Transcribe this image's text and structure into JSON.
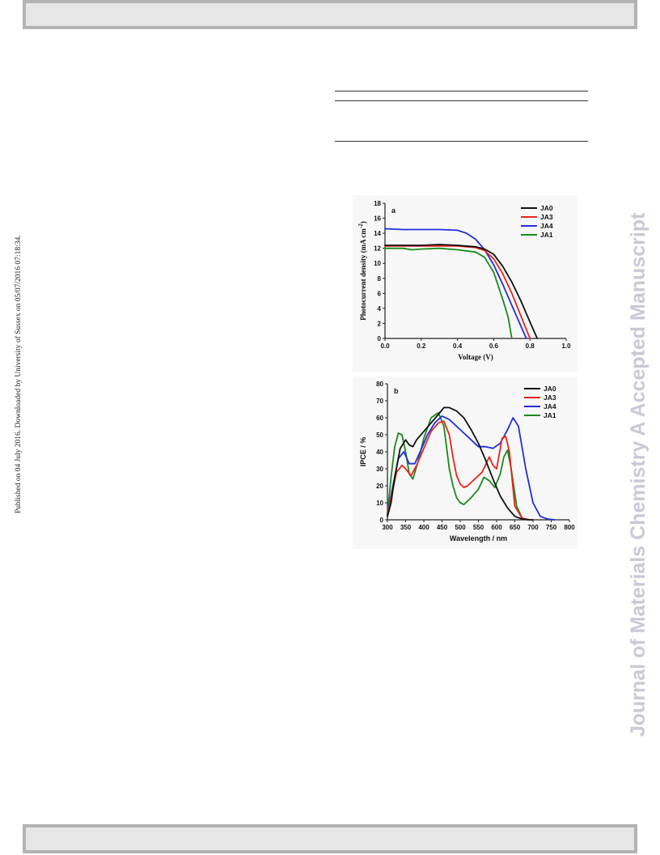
{
  "side_note": "Published on 04 July 2016. Downloaded by University of Sussex on 05/07/2016 07:18:34.",
  "watermark": "Journal of Materials Chemistry A Accepted Manuscript",
  "chart_data": [
    {
      "type": "line",
      "panel_label": "a",
      "xlabel": "Voltage (V)",
      "ylabel": "Photocurrent density (mA cm",
      "ylabel_sup": "-2",
      "ylabel_end": ")",
      "xlim": [
        0.0,
        1.0
      ],
      "ylim": [
        0,
        18
      ],
      "xticks": [
        "0.0",
        "0.2",
        "0.4",
        "0.6",
        "0.8",
        "1.0"
      ],
      "yticks": [
        "0",
        "2",
        "4",
        "6",
        "8",
        "10",
        "12",
        "14",
        "16",
        "18"
      ],
      "legend_position": "top-right",
      "colors": {
        "JA0": "#111111",
        "JA3": "#e8231d",
        "JA4": "#1f2fe0",
        "JA1": "#1a8a1a"
      },
      "series": [
        {
          "name": "JA0",
          "x": [
            0,
            0.1,
            0.2,
            0.3,
            0.4,
            0.5,
            0.55,
            0.6,
            0.65,
            0.7,
            0.75,
            0.8,
            0.84
          ],
          "y": [
            12.4,
            12.4,
            12.4,
            12.5,
            12.4,
            12.2,
            11.9,
            11.2,
            9.6,
            7.5,
            5.0,
            2.2,
            0
          ]
        },
        {
          "name": "JA3",
          "x": [
            0,
            0.1,
            0.2,
            0.3,
            0.4,
            0.5,
            0.55,
            0.6,
            0.65,
            0.7,
            0.75,
            0.8
          ],
          "y": [
            12.3,
            12.3,
            12.3,
            12.3,
            12.3,
            12.1,
            11.7,
            10.6,
            8.6,
            6.0,
            3.0,
            0
          ]
        },
        {
          "name": "JA4",
          "x": [
            0,
            0.1,
            0.2,
            0.3,
            0.4,
            0.45,
            0.5,
            0.55,
            0.6,
            0.65,
            0.7,
            0.74,
            0.78
          ],
          "y": [
            14.6,
            14.5,
            14.5,
            14.5,
            14.4,
            14.0,
            13.2,
            11.8,
            9.8,
            7.2,
            4.4,
            2.2,
            0
          ]
        },
        {
          "name": "JA1",
          "x": [
            0,
            0.1,
            0.15,
            0.2,
            0.3,
            0.4,
            0.5,
            0.55,
            0.6,
            0.65,
            0.68,
            0.7
          ],
          "y": [
            12.0,
            12.0,
            11.8,
            11.9,
            12.0,
            11.8,
            11.5,
            10.8,
            8.8,
            5.2,
            2.8,
            0
          ]
        }
      ]
    },
    {
      "type": "line",
      "panel_label": "b",
      "xlabel": "Wavelength / nm",
      "ylabel": "IPCE / %",
      "xlim": [
        300,
        800
      ],
      "ylim": [
        0,
        80
      ],
      "xticks": [
        "300",
        "350",
        "400",
        "450",
        "500",
        "550",
        "600",
        "650",
        "700",
        "750",
        "800"
      ],
      "yticks": [
        "0",
        "10",
        "20",
        "30",
        "40",
        "50",
        "60",
        "70",
        "80"
      ],
      "legend_position": "top-right",
      "colors": {
        "JA0": "#111111",
        "JA3": "#e8231d",
        "JA4": "#1f2fe0",
        "JA1": "#1a8a1a"
      },
      "series": [
        {
          "name": "JA0",
          "x": [
            300,
            310,
            320,
            335,
            350,
            360,
            370,
            380,
            400,
            420,
            440,
            455,
            470,
            490,
            510,
            530,
            550,
            570,
            590,
            610,
            630,
            650,
            670,
            690,
            700
          ],
          "y": [
            2,
            10,
            25,
            42,
            47,
            44,
            43,
            47,
            52,
            57,
            62,
            66,
            66,
            64,
            60,
            53,
            45,
            35,
            24,
            14,
            7,
            2,
            0.5,
            0,
            0
          ]
        },
        {
          "name": "JA3",
          "x": [
            300,
            315,
            325,
            340,
            350,
            365,
            380,
            400,
            420,
            440,
            455,
            470,
            480,
            490,
            500,
            510,
            520,
            540,
            560,
            580,
            590,
            600,
            615,
            625,
            635,
            650,
            670,
            690
          ],
          "y": [
            2,
            18,
            28,
            32,
            30,
            26,
            32,
            42,
            52,
            57,
            58,
            50,
            37,
            26,
            21,
            19,
            20,
            24,
            28,
            37,
            32,
            30,
            48,
            49,
            40,
            8,
            1,
            0
          ]
        },
        {
          "name": "JA4",
          "x": [
            300,
            315,
            330,
            345,
            360,
            375,
            390,
            410,
            430,
            450,
            470,
            490,
            510,
            530,
            550,
            570,
            590,
            610,
            630,
            645,
            660,
            680,
            700,
            720,
            740,
            760
          ],
          "y": [
            3,
            20,
            36,
            40,
            33,
            33,
            40,
            50,
            57,
            61,
            59,
            55,
            51,
            47,
            43,
            43,
            42,
            45,
            53,
            60,
            55,
            30,
            10,
            2,
            0.5,
            0
          ]
        },
        {
          "name": "JA1",
          "x": [
            300,
            310,
            320,
            330,
            340,
            350,
            360,
            370,
            385,
            400,
            420,
            440,
            455,
            470,
            480,
            490,
            500,
            510,
            530,
            550,
            565,
            580,
            595,
            610,
            620,
            630,
            640,
            655,
            670,
            685
          ],
          "y": [
            3,
            25,
            43,
            51,
            50,
            40,
            27,
            24,
            35,
            48,
            60,
            63,
            55,
            30,
            20,
            13,
            10,
            9,
            13,
            18,
            25,
            23,
            19,
            27,
            37,
            41,
            30,
            8,
            1,
            0
          ]
        }
      ]
    }
  ]
}
